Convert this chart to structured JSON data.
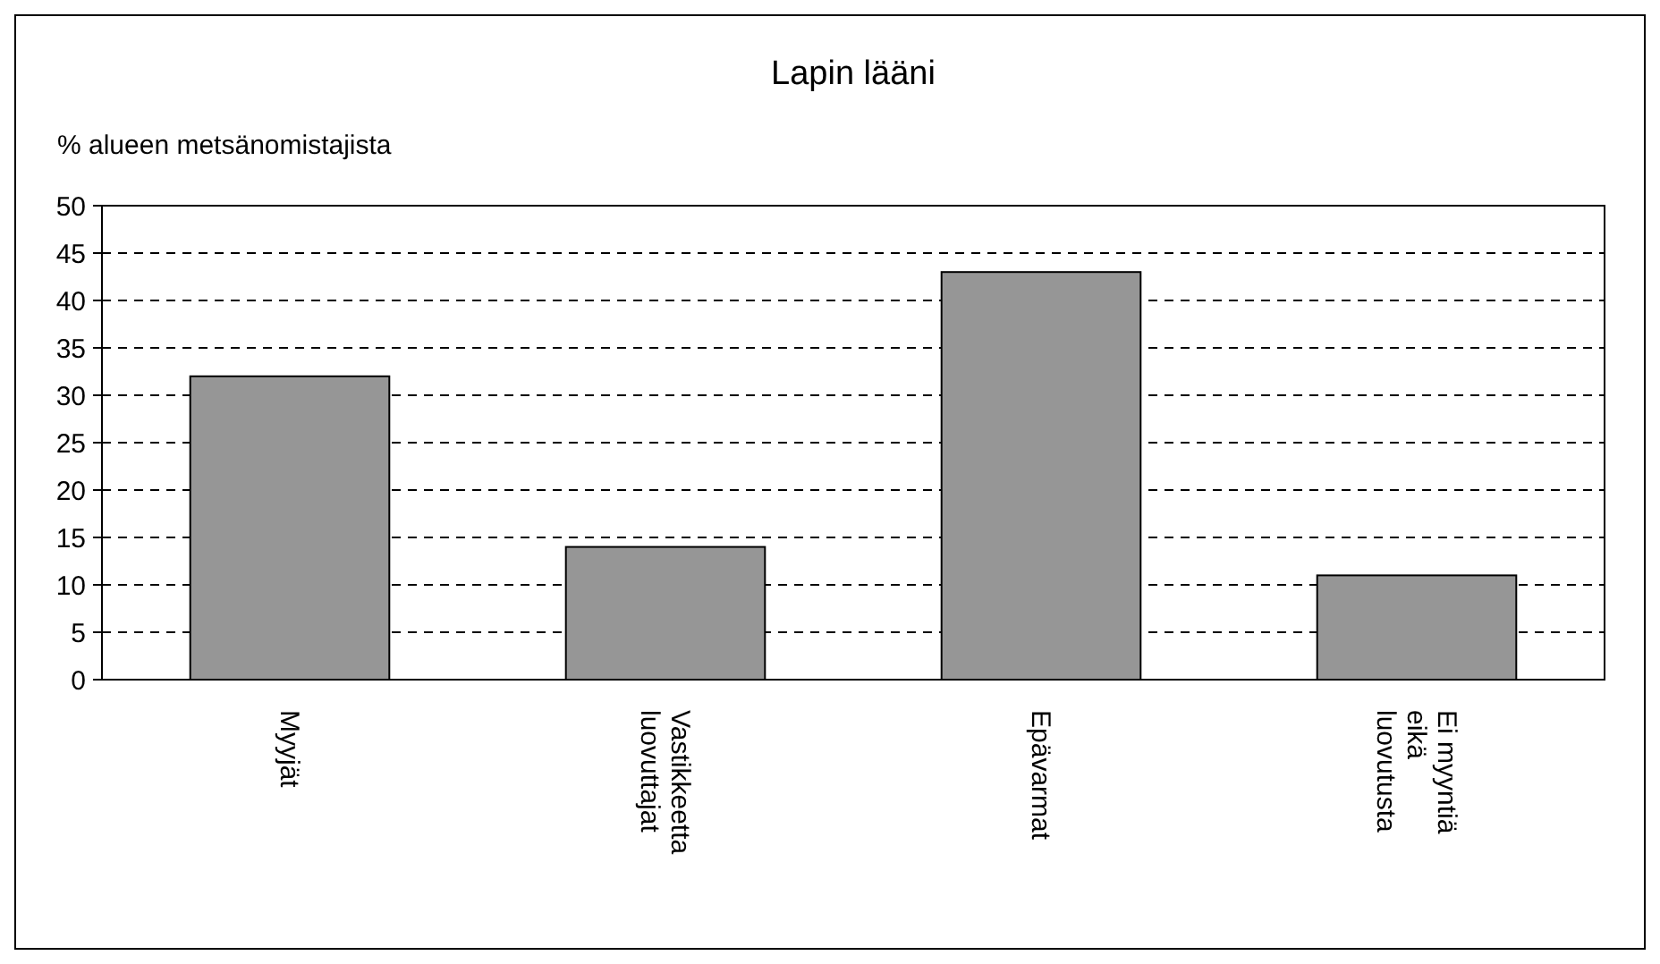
{
  "chart_data": {
    "type": "bar",
    "title": "Lapin lääni",
    "ylabel": "% alueen metsänomistajista",
    "categories": [
      "Myyjät",
      "Vastikkeetta luovuttajat",
      "Epävarmat",
      "Ei myyntiä eikä luovutusta"
    ],
    "values": [
      32,
      14,
      43,
      11
    ],
    "color": "#969696",
    "ylim": [
      0,
      50
    ],
    "yticks": [
      0,
      5,
      10,
      15,
      20,
      25,
      30,
      35,
      40,
      45,
      50
    ],
    "grid": "y"
  }
}
